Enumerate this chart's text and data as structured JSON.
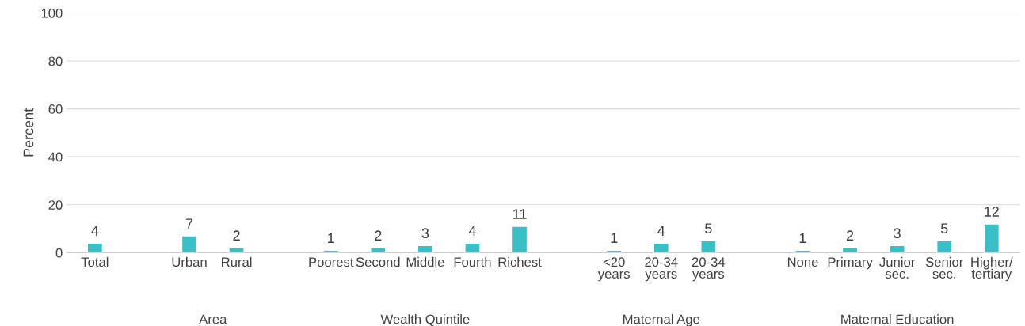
{
  "chart_data": {
    "type": "bar",
    "ylabel": "Percent",
    "categories": [
      "Total",
      null,
      "Urban",
      "Rural",
      null,
      "Poorest",
      "Second",
      "Middle",
      "Fourth",
      "Richest",
      null,
      "<20\nyears",
      "20-34\nyears",
      "20-34\nyears",
      null,
      "None",
      "Primary",
      "Junior\nsec.",
      "Senior\nsec.",
      "Higher/\ntertiary"
    ],
    "values": [
      4,
      null,
      7,
      2,
      null,
      1,
      2,
      3,
      4,
      11,
      null,
      1,
      4,
      5,
      null,
      1,
      2,
      3,
      5,
      12
    ],
    "color": "#3bbfc6",
    "ylim": [
      0,
      100
    ],
    "yticks": [
      0,
      20,
      40,
      60,
      80,
      100
    ],
    "grid": "y",
    "data_labels": true,
    "annotations": [
      "Area",
      "Wealth Quintile",
      "Maternal Age",
      "Maternal Education"
    ]
  }
}
